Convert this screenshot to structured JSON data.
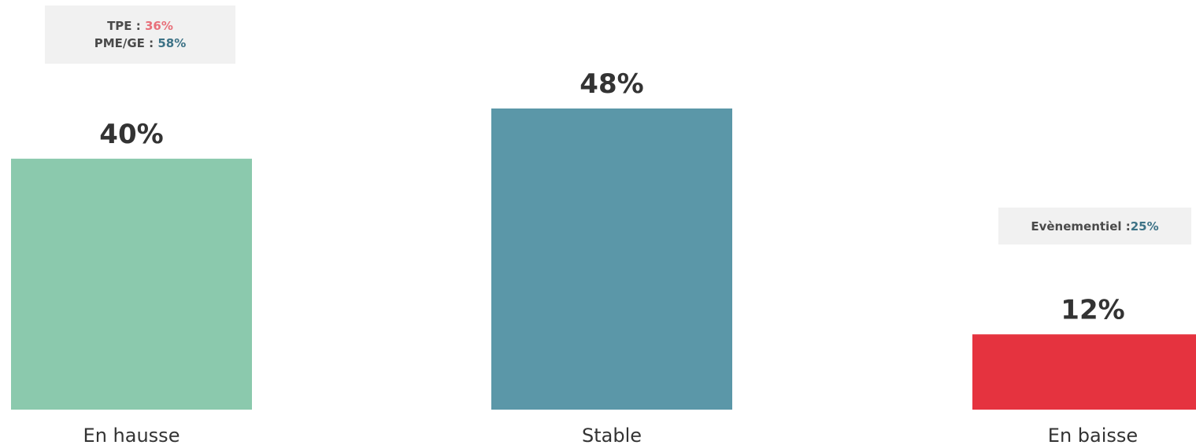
{
  "chart_data": {
    "type": "bar",
    "categories": [
      "En hausse",
      "Stable",
      "En baisse"
    ],
    "values": [
      40,
      48,
      12
    ],
    "value_labels": [
      "40%",
      "48%",
      "12%"
    ],
    "colors": [
      "#8bc9ad",
      "#5b97a8",
      "#e5333f"
    ],
    "ylim": [
      0,
      48
    ],
    "grid": false,
    "title": "",
    "xlabel": "",
    "ylabel": ""
  },
  "notes": {
    "hausse": {
      "tpe_label": "TPE : ",
      "tpe_value": "36%",
      "tpe_color": "#e8707a",
      "pme_label": "PME/GE : ",
      "pme_value": "58%",
      "pme_color": "#3d7286"
    },
    "baisse": {
      "label": "Evènementiel : ",
      "value": "25%",
      "value_color": "#3d7286"
    }
  }
}
